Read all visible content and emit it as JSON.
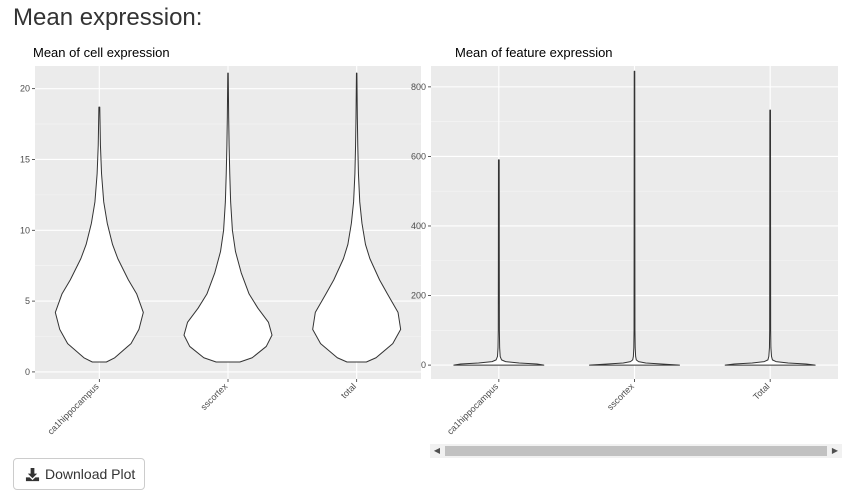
{
  "page": {
    "title": "Mean expression:"
  },
  "download_button": {
    "label": "Download Plot",
    "icon": "download-icon"
  },
  "chart_data": [
    {
      "type": "violin",
      "title": "Mean of cell expression",
      "xlabel": "",
      "ylabel": "",
      "categories": [
        "ca1hippocampus",
        "sscortex",
        "total"
      ],
      "ylim": [
        -0.5,
        21.6
      ],
      "yticks": [
        0,
        5,
        10,
        15,
        20
      ],
      "grid": true,
      "background": "#ebebeb",
      "violins": [
        {
          "category": "ca1hippocampus",
          "min": 0.7,
          "max": 18.7,
          "profile": [
            [
              0.7,
              0.16
            ],
            [
              1.0,
              0.35
            ],
            [
              2.0,
              0.72
            ],
            [
              3.0,
              0.9
            ],
            [
              4.2,
              1.0
            ],
            [
              5.5,
              0.85
            ],
            [
              6.5,
              0.66
            ],
            [
              8.0,
              0.42
            ],
            [
              9.0,
              0.3
            ],
            [
              10.5,
              0.18
            ],
            [
              12.0,
              0.1
            ],
            [
              14.0,
              0.05
            ],
            [
              16.0,
              0.025
            ],
            [
              18.7,
              0.01
            ]
          ]
        },
        {
          "category": "sscortex",
          "min": 0.7,
          "max": 21.1,
          "profile": [
            [
              0.7,
              0.27
            ],
            [
              1.0,
              0.55
            ],
            [
              1.8,
              0.87
            ],
            [
              2.6,
              1.0
            ],
            [
              3.5,
              0.92
            ],
            [
              4.5,
              0.68
            ],
            [
              5.5,
              0.48
            ],
            [
              7.0,
              0.3
            ],
            [
              8.5,
              0.17
            ],
            [
              10.0,
              0.1
            ],
            [
              12.0,
              0.06
            ],
            [
              14.0,
              0.04
            ],
            [
              16.0,
              0.025
            ],
            [
              18.0,
              0.015
            ],
            [
              21.1,
              0.005
            ]
          ]
        },
        {
          "category": "total",
          "min": 0.7,
          "max": 21.1,
          "profile": [
            [
              0.7,
              0.22
            ],
            [
              1.0,
              0.44
            ],
            [
              2.0,
              0.82
            ],
            [
              3.0,
              1.0
            ],
            [
              4.2,
              0.94
            ],
            [
              5.5,
              0.7
            ],
            [
              6.5,
              0.52
            ],
            [
              8.0,
              0.3
            ],
            [
              9.0,
              0.2
            ],
            [
              10.5,
              0.12
            ],
            [
              12.0,
              0.07
            ],
            [
              14.0,
              0.04
            ],
            [
              16.0,
              0.025
            ],
            [
              18.0,
              0.015
            ],
            [
              21.1,
              0.005
            ]
          ]
        }
      ]
    },
    {
      "type": "violin",
      "title": "Mean of feature expression",
      "xlabel": "",
      "ylabel": "",
      "categories": [
        "ca1hippocampus",
        "sscortex",
        "Total"
      ],
      "ylim": [
        -40,
        860
      ],
      "yticks": [
        0,
        200,
        400,
        600,
        800
      ],
      "grid": true,
      "background": "#ebebeb",
      "violins": [
        {
          "category": "ca1hippocampus",
          "min": 0,
          "max": 590,
          "profile": [
            [
              0,
              1.0
            ],
            [
              3,
              0.85
            ],
            [
              6,
              0.45
            ],
            [
              10,
              0.15
            ],
            [
              15,
              0.06
            ],
            [
              25,
              0.03
            ],
            [
              50,
              0.018
            ],
            [
              100,
              0.012
            ],
            [
              300,
              0.01
            ],
            [
              590,
              0.008
            ]
          ]
        },
        {
          "category": "sscortex",
          "min": 0,
          "max": 845,
          "profile": [
            [
              0,
              1.0
            ],
            [
              3,
              0.6
            ],
            [
              6,
              0.25
            ],
            [
              10,
              0.09
            ],
            [
              15,
              0.04
            ],
            [
              25,
              0.025
            ],
            [
              50,
              0.015
            ],
            [
              100,
              0.01
            ],
            [
              400,
              0.008
            ],
            [
              845,
              0.006
            ]
          ]
        },
        {
          "category": "Total",
          "min": 0,
          "max": 733,
          "profile": [
            [
              0,
              1.0
            ],
            [
              3,
              0.8
            ],
            [
              6,
              0.4
            ],
            [
              10,
              0.13
            ],
            [
              15,
              0.05
            ],
            [
              25,
              0.03
            ],
            [
              50,
              0.016
            ],
            [
              100,
              0.011
            ],
            [
              400,
              0.009
            ],
            [
              733,
              0.007
            ]
          ]
        }
      ]
    }
  ]
}
